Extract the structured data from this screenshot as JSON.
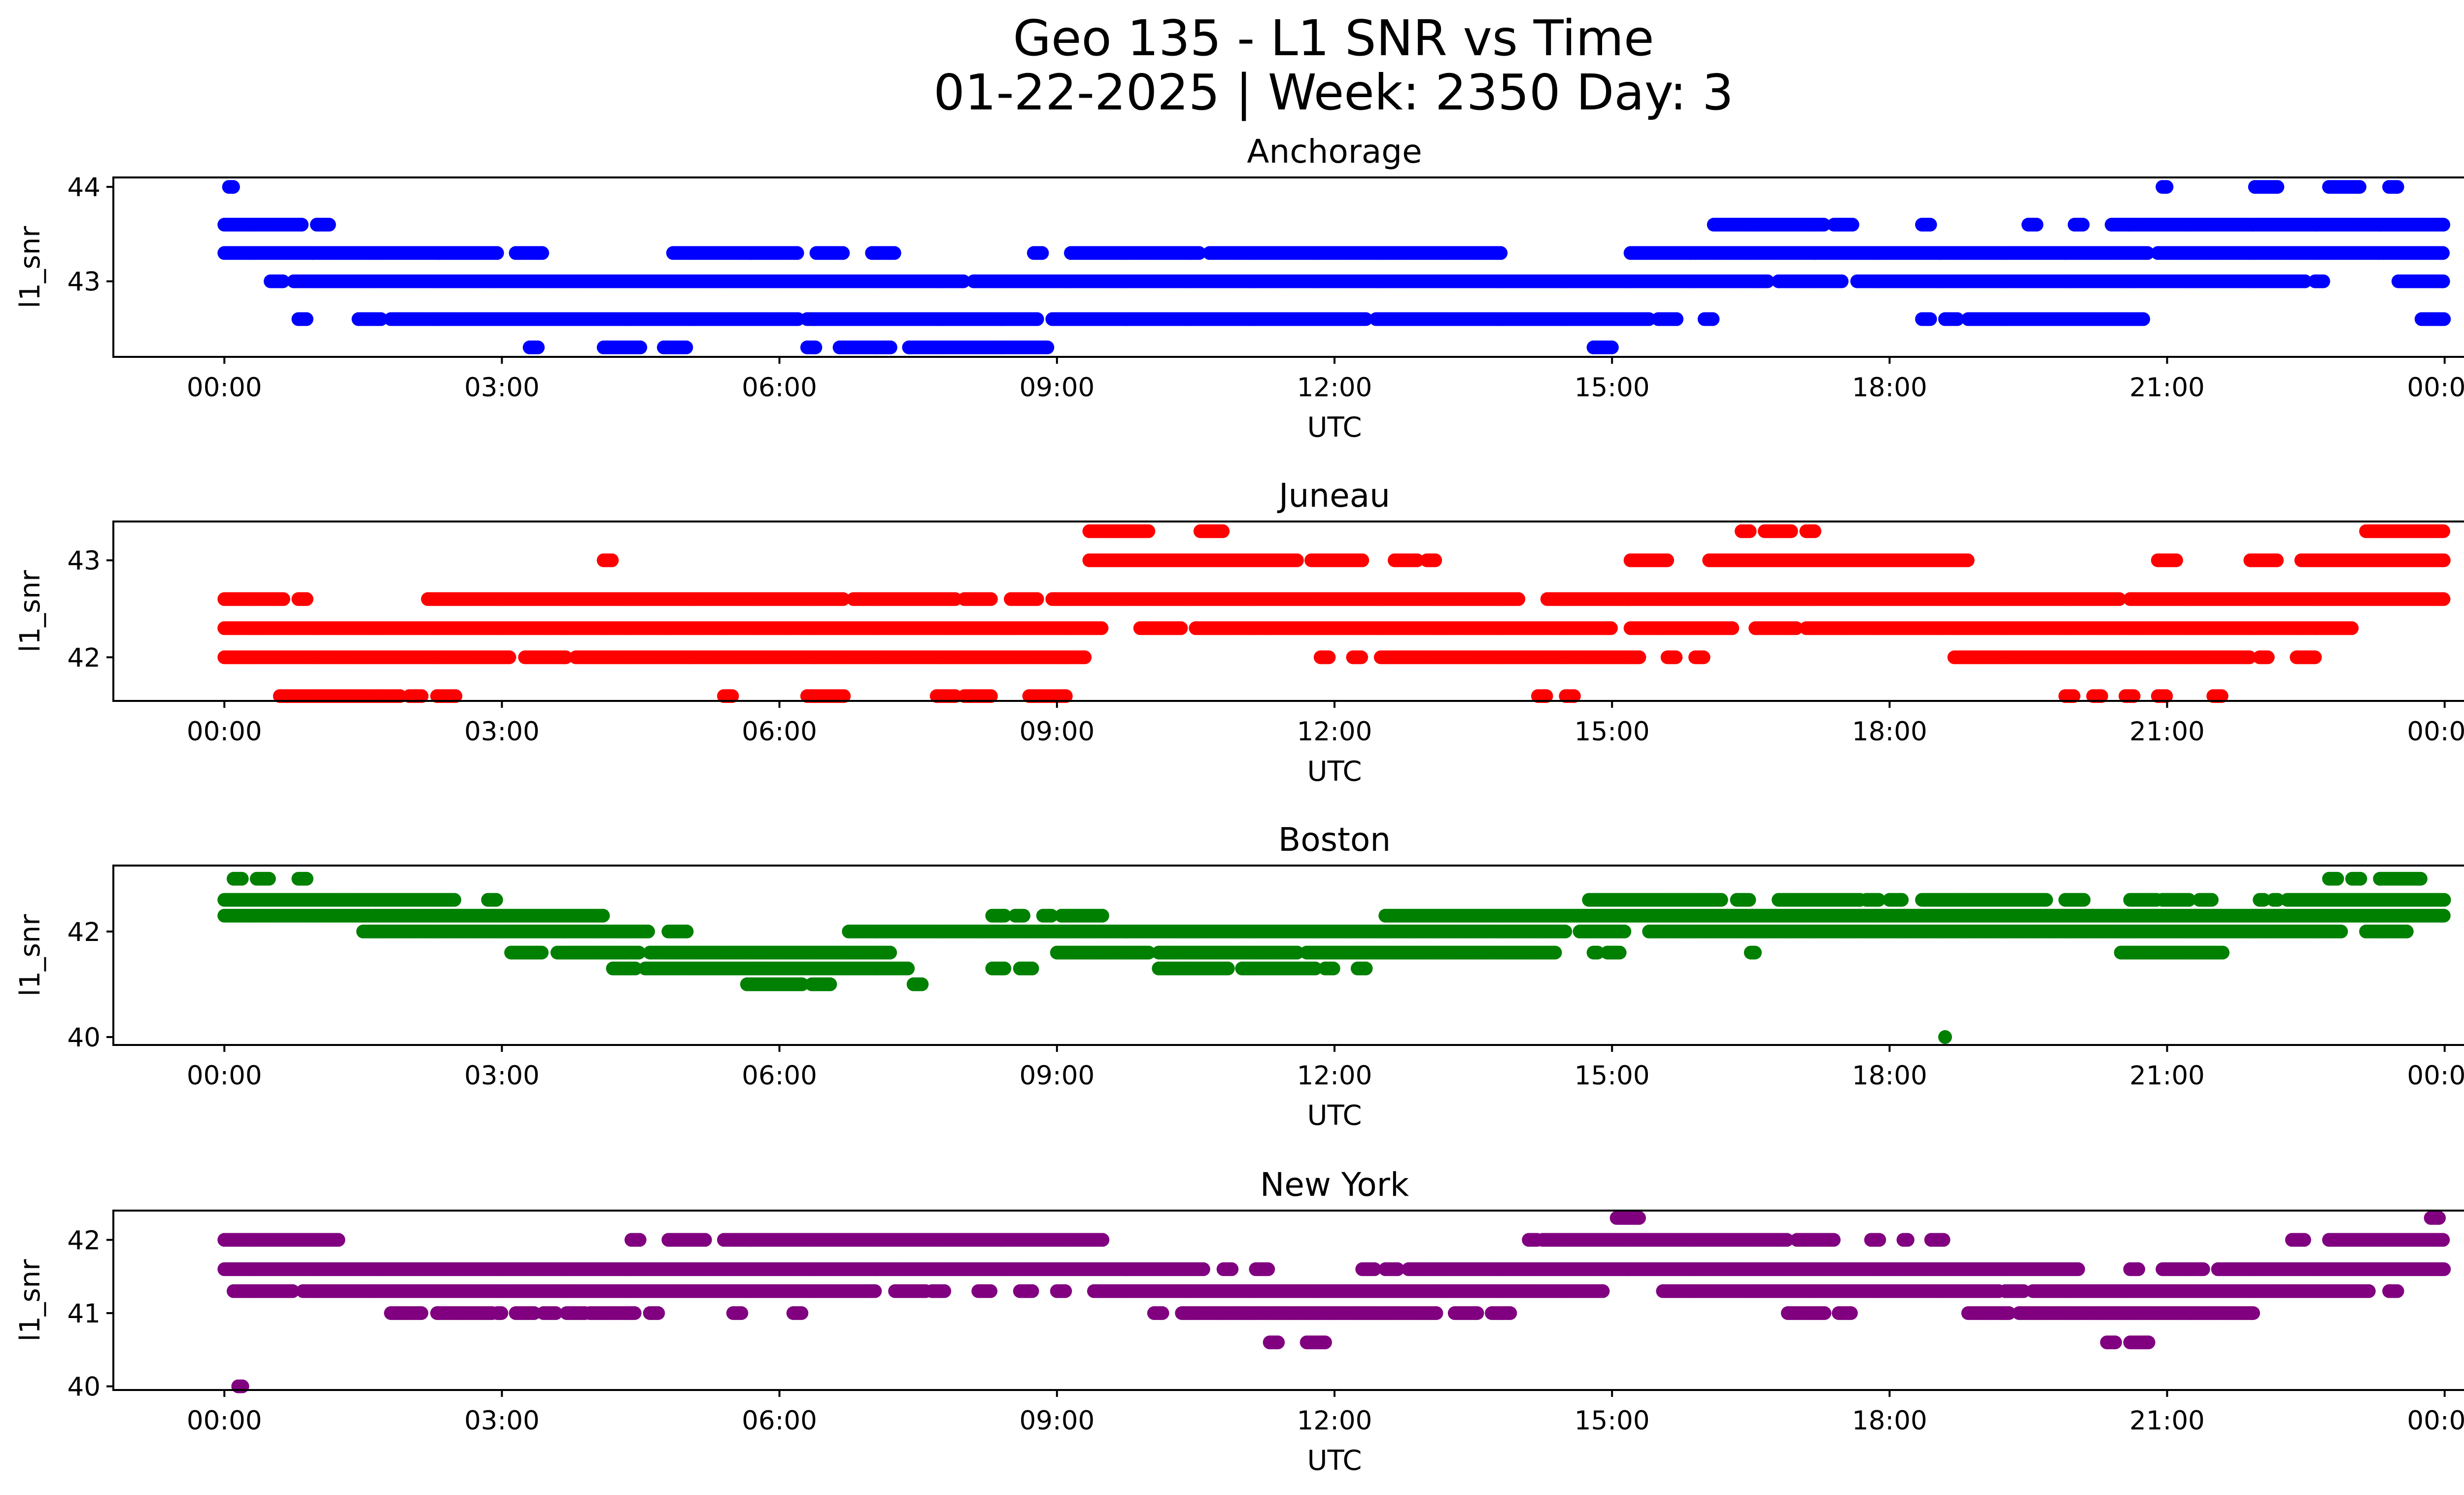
{
  "figure": {
    "title_line1": "Geo 135 - L1 SNR vs Time",
    "title_line2": "01-22-2025 | Week: 2350 Day: 3"
  },
  "chart_data": [
    {
      "type": "scatter",
      "title": "Anchorage",
      "xlabel": "UTC",
      "ylabel": "l1_snr",
      "color": "#0000ff",
      "x_ticks": [
        "00:00",
        "03:00",
        "06:00",
        "09:00",
        "12:00",
        "15:00",
        "18:00",
        "21:00",
        "00:00"
      ],
      "x_range_hours": [
        0,
        24
      ],
      "xlim": [
        -1.2,
        25.2
      ],
      "y_ticks": [
        43,
        44
      ],
      "ylim": [
        42.2,
        44.1
      ],
      "levels": [
        {
          "y": 44.0,
          "ranges": [
            [
              0.05,
              0.1
            ],
            [
              20.95,
              21.0
            ],
            [
              21.95,
              22.2
            ],
            [
              22.75,
              23.1
            ],
            [
              23.4,
              23.5
            ]
          ]
        },
        {
          "y": 43.6,
          "ranges": [
            [
              0.0,
              0.85
            ],
            [
              1.0,
              1.15
            ],
            [
              16.1,
              17.3
            ],
            [
              17.4,
              17.6
            ],
            [
              18.35,
              18.45
            ],
            [
              19.5,
              19.6
            ],
            [
              20.0,
              20.1
            ],
            [
              20.4,
              24.0
            ]
          ]
        },
        {
          "y": 43.3,
          "ranges": [
            [
              0.0,
              2.95
            ],
            [
              3.15,
              3.45
            ],
            [
              4.85,
              6.2
            ],
            [
              6.4,
              6.7
            ],
            [
              7.0,
              7.25
            ],
            [
              8.75,
              8.85
            ],
            [
              9.15,
              10.55
            ],
            [
              10.65,
              13.8
            ],
            [
              15.2,
              20.8
            ],
            [
              20.9,
              24.0
            ]
          ]
        },
        {
          "y": 43.0,
          "ranges": [
            [
              0.5,
              0.65
            ],
            [
              0.75,
              8.0
            ],
            [
              8.1,
              16.7
            ],
            [
              16.8,
              17.5
            ],
            [
              17.65,
              22.5
            ],
            [
              22.6,
              22.7
            ],
            [
              23.5,
              24.0
            ]
          ]
        },
        {
          "y": 42.6,
          "ranges": [
            [
              0.8,
              0.9
            ],
            [
              1.45,
              1.7
            ],
            [
              1.8,
              6.2
            ],
            [
              6.3,
              8.8
            ],
            [
              8.95,
              12.35
            ],
            [
              12.45,
              15.4
            ],
            [
              15.5,
              15.7
            ],
            [
              16.0,
              16.1
            ],
            [
              18.35,
              18.45
            ],
            [
              18.6,
              18.75
            ],
            [
              18.85,
              20.75
            ],
            [
              23.75,
              24.0
            ]
          ]
        },
        {
          "y": 42.3,
          "ranges": [
            [
              3.3,
              3.4
            ],
            [
              4.1,
              4.5
            ],
            [
              4.75,
              5.0
            ],
            [
              6.3,
              6.4
            ],
            [
              6.65,
              7.2
            ],
            [
              7.4,
              8.9
            ],
            [
              14.8,
              15.0
            ]
          ]
        }
      ]
    },
    {
      "type": "scatter",
      "title": "Juneau",
      "xlabel": "UTC",
      "ylabel": "l1_snr",
      "color": "#ff0000",
      "x_ticks": [
        "00:00",
        "03:00",
        "06:00",
        "09:00",
        "12:00",
        "15:00",
        "18:00",
        "21:00",
        "00:00"
      ],
      "x_range_hours": [
        0,
        24
      ],
      "xlim": [
        -1.2,
        25.2
      ],
      "y_ticks": [
        42,
        43
      ],
      "ylim": [
        41.55,
        43.4
      ],
      "levels": [
        {
          "y": 43.3,
          "ranges": [
            [
              9.35,
              10.0
            ],
            [
              10.55,
              10.8
            ],
            [
              16.4,
              16.5
            ],
            [
              16.65,
              16.95
            ],
            [
              17.1,
              17.2
            ],
            [
              23.15,
              24.0
            ]
          ]
        },
        {
          "y": 43.0,
          "ranges": [
            [
              4.1,
              4.2
            ],
            [
              9.35,
              11.6
            ],
            [
              11.75,
              12.3
            ],
            [
              12.65,
              12.9
            ],
            [
              13.0,
              13.1
            ],
            [
              15.2,
              15.6
            ],
            [
              16.05,
              18.85
            ],
            [
              20.9,
              21.1
            ],
            [
              21.9,
              22.2
            ],
            [
              22.45,
              24.0
            ]
          ]
        },
        {
          "y": 42.6,
          "ranges": [
            [
              0.0,
              0.65
            ],
            [
              0.8,
              0.9
            ],
            [
              2.2,
              6.7
            ],
            [
              6.8,
              7.9
            ],
            [
              8.0,
              8.3
            ],
            [
              8.5,
              8.8
            ],
            [
              8.95,
              14.0
            ],
            [
              14.3,
              20.5
            ],
            [
              20.6,
              24.0
            ]
          ]
        },
        {
          "y": 42.3,
          "ranges": [
            [
              0.0,
              9.5
            ],
            [
              9.9,
              10.35
            ],
            [
              10.5,
              15.0
            ],
            [
              15.2,
              16.3
            ],
            [
              16.55,
              17.0
            ],
            [
              17.1,
              23.0
            ]
          ]
        },
        {
          "y": 42.0,
          "ranges": [
            [
              0.0,
              3.1
            ],
            [
              3.25,
              3.7
            ],
            [
              3.8,
              9.3
            ],
            [
              11.85,
              11.95
            ],
            [
              12.2,
              12.3
            ],
            [
              12.5,
              15.3
            ],
            [
              15.6,
              15.7
            ],
            [
              15.9,
              16.0
            ],
            [
              18.7,
              21.9
            ],
            [
              22.0,
              22.1
            ],
            [
              22.4,
              22.6
            ]
          ]
        },
        {
          "y": 41.6,
          "ranges": [
            [
              0.6,
              1.9
            ],
            [
              2.0,
              2.15
            ],
            [
              2.3,
              2.5
            ],
            [
              5.4,
              5.5
            ],
            [
              6.3,
              6.7
            ],
            [
              7.7,
              7.9
            ],
            [
              8.0,
              8.3
            ],
            [
              8.7,
              9.1
            ],
            [
              14.2,
              14.3
            ],
            [
              14.5,
              14.6
            ],
            [
              19.9,
              20.0
            ],
            [
              20.2,
              20.3
            ],
            [
              20.55,
              20.65
            ],
            [
              20.9,
              21.0
            ],
            [
              21.5,
              21.6
            ]
          ]
        }
      ]
    },
    {
      "type": "scatter",
      "title": "Boston",
      "xlabel": "UTC",
      "ylabel": "l1_snr",
      "color": "#008000",
      "x_ticks": [
        "00:00",
        "03:00",
        "06:00",
        "09:00",
        "12:00",
        "15:00",
        "18:00",
        "21:00",
        "00:00"
      ],
      "x_range_hours": [
        0,
        24
      ],
      "xlim": [
        -1.2,
        25.2
      ],
      "y_ticks": [
        40,
        42
      ],
      "ylim": [
        39.85,
        43.25
      ],
      "levels": [
        {
          "y": 43.0,
          "ranges": [
            [
              0.1,
              0.2
            ],
            [
              0.35,
              0.5
            ],
            [
              0.8,
              0.9
            ],
            [
              22.75,
              22.85
            ],
            [
              23.0,
              23.1
            ],
            [
              23.3,
              23.75
            ]
          ]
        },
        {
          "y": 42.6,
          "ranges": [
            [
              0.0,
              2.5
            ],
            [
              2.85,
              2.95
            ],
            [
              14.75,
              16.2
            ],
            [
              16.35,
              16.5
            ],
            [
              16.8,
              17.7
            ],
            [
              17.75,
              17.9
            ],
            [
              18.0,
              18.15
            ],
            [
              18.35,
              19.7
            ],
            [
              19.9,
              20.1
            ],
            [
              20.6,
              20.9
            ],
            [
              20.95,
              21.25
            ],
            [
              21.35,
              21.5
            ],
            [
              22.0,
              22.05
            ],
            [
              22.15,
              22.2
            ],
            [
              22.3,
              24.0
            ]
          ]
        },
        {
          "y": 42.3,
          "ranges": [
            [
              0.0,
              4.1
            ],
            [
              8.3,
              8.45
            ],
            [
              8.55,
              8.65
            ],
            [
              8.85,
              8.95
            ],
            [
              9.05,
              9.5
            ],
            [
              12.55,
              24.0
            ]
          ]
        },
        {
          "y": 42.0,
          "ranges": [
            [
              1.5,
              4.6
            ],
            [
              4.8,
              5.0
            ],
            [
              6.75,
              14.5
            ],
            [
              14.65,
              15.15
            ],
            [
              15.4,
              22.9
            ],
            [
              23.15,
              23.6
            ]
          ]
        },
        {
          "y": 41.6,
          "ranges": [
            [
              3.1,
              3.45
            ],
            [
              3.6,
              4.5
            ],
            [
              4.6,
              7.2
            ],
            [
              9.0,
              10.0
            ],
            [
              10.1,
              11.6
            ],
            [
              11.7,
              14.4
            ],
            [
              14.8,
              14.85
            ],
            [
              14.95,
              15.1
            ],
            [
              16.5,
              16.55
            ],
            [
              20.5,
              21.6
            ]
          ]
        },
        {
          "y": 41.3,
          "ranges": [
            [
              4.2,
              4.45
            ],
            [
              4.55,
              7.4
            ],
            [
              8.3,
              8.45
            ],
            [
              8.6,
              8.75
            ],
            [
              10.1,
              10.85
            ],
            [
              11.0,
              11.8
            ],
            [
              11.9,
              12.0
            ],
            [
              12.25,
              12.35
            ]
          ]
        },
        {
          "y": 41.0,
          "ranges": [
            [
              5.65,
              6.25
            ],
            [
              6.35,
              6.55
            ],
            [
              7.45,
              7.55
            ]
          ]
        },
        {
          "y": 40.0,
          "ranges": [
            [
              18.6,
              18.6
            ]
          ]
        }
      ]
    },
    {
      "type": "scatter",
      "title": "New York",
      "xlabel": "UTC",
      "ylabel": "l1_snr",
      "color": "#800080",
      "x_ticks": [
        "00:00",
        "03:00",
        "06:00",
        "09:00",
        "12:00",
        "15:00",
        "18:00",
        "21:00",
        "00:00"
      ],
      "x_range_hours": [
        0,
        24
      ],
      "xlim": [
        -1.2,
        25.2
      ],
      "y_ticks": [
        40,
        41,
        42
      ],
      "ylim": [
        39.95,
        42.4
      ],
      "levels": [
        {
          "y": 42.3,
          "ranges": [
            [
              15.05,
              15.3
            ],
            [
              23.85,
              23.95
            ]
          ]
        },
        {
          "y": 42.0,
          "ranges": [
            [
              0.0,
              1.25
            ],
            [
              4.4,
              4.5
            ],
            [
              4.8,
              5.2
            ],
            [
              5.4,
              9.5
            ],
            [
              14.1,
              14.2
            ],
            [
              14.25,
              16.9
            ],
            [
              17.0,
              17.4
            ],
            [
              17.8,
              17.9
            ],
            [
              18.15,
              18.2
            ],
            [
              18.45,
              18.6
            ],
            [
              22.35,
              22.5
            ],
            [
              22.75,
              24.0
            ]
          ]
        },
        {
          "y": 41.6,
          "ranges": [
            [
              0.0,
              10.6
            ],
            [
              10.8,
              10.9
            ],
            [
              11.15,
              11.3
            ],
            [
              12.3,
              12.45
            ],
            [
              12.55,
              12.7
            ],
            [
              12.8,
              20.05
            ],
            [
              20.6,
              20.7
            ],
            [
              20.95,
              21.4
            ],
            [
              21.55,
              24.0
            ]
          ]
        },
        {
          "y": 41.3,
          "ranges": [
            [
              0.1,
              0.75
            ],
            [
              0.85,
              7.05
            ],
            [
              7.25,
              7.6
            ],
            [
              7.65,
              7.8
            ],
            [
              8.15,
              8.3
            ],
            [
              8.6,
              8.75
            ],
            [
              9.0,
              9.1
            ],
            [
              9.4,
              14.9
            ],
            [
              15.55,
              19.2
            ],
            [
              19.25,
              19.45
            ],
            [
              19.55,
              23.2
            ],
            [
              23.4,
              23.5
            ]
          ]
        },
        {
          "y": 41.0,
          "ranges": [
            [
              1.8,
              2.15
            ],
            [
              2.3,
              2.9
            ],
            [
              2.95,
              3.0
            ],
            [
              3.15,
              3.35
            ],
            [
              3.45,
              3.6
            ],
            [
              3.7,
              3.9
            ],
            [
              3.95,
              4.45
            ],
            [
              4.6,
              4.7
            ],
            [
              5.5,
              5.6
            ],
            [
              6.15,
              6.25
            ],
            [
              10.05,
              10.15
            ],
            [
              10.35,
              13.1
            ],
            [
              13.3,
              13.55
            ],
            [
              13.7,
              13.9
            ],
            [
              16.9,
              17.3
            ],
            [
              17.45,
              17.6
            ],
            [
              18.85,
              19.3
            ],
            [
              19.4,
              21.95
            ]
          ]
        },
        {
          "y": 40.6,
          "ranges": [
            [
              11.3,
              11.4
            ],
            [
              11.7,
              11.9
            ],
            [
              20.35,
              20.45
            ],
            [
              20.6,
              20.8
            ]
          ]
        },
        {
          "y": 40.0,
          "ranges": [
            [
              0.15,
              0.2
            ]
          ]
        }
      ]
    }
  ]
}
